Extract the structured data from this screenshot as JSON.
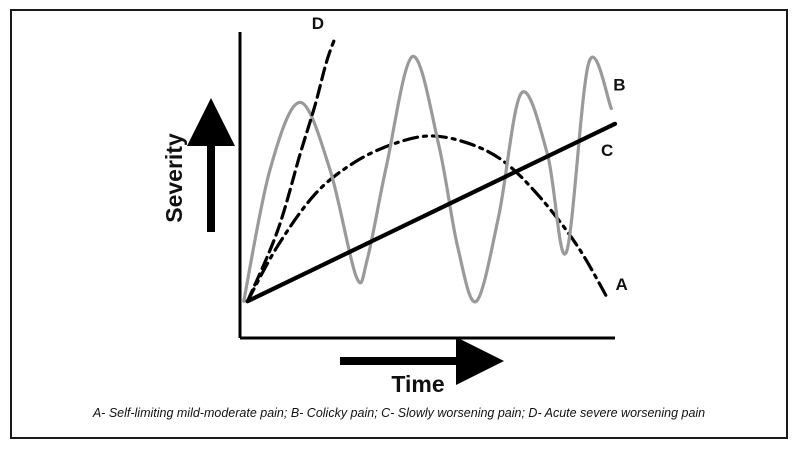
{
  "chart_data": {
    "type": "line",
    "xlabel": "Time",
    "ylabel": "Severity",
    "xlim": [
      0,
      10
    ],
    "ylim": [
      0,
      10
    ],
    "grid": false,
    "legend": "none",
    "series": [
      {
        "name": "A",
        "style": "dash-dot",
        "color": "#000000",
        "x": [
          0.2,
          1,
          2,
          3,
          4,
          5,
          6,
          7,
          8,
          9,
          9.8
        ],
        "y": [
          1.2,
          3.0,
          4.7,
          5.7,
          6.3,
          6.6,
          6.4,
          5.8,
          4.6,
          3.0,
          1.3
        ]
      },
      {
        "name": "B",
        "style": "solid",
        "color": "#9a9a9a",
        "x": [
          0.1,
          0.8,
          1.6,
          2.4,
          3.1,
          3.4,
          3.9,
          4.6,
          5.3,
          5.8,
          6.3,
          6.9,
          7.5,
          8.2,
          8.7,
          9.3,
          9.9
        ],
        "y": [
          1.2,
          5.5,
          7.7,
          5.5,
          2.0,
          2.6,
          5.6,
          9.2,
          6.3,
          3.0,
          1.2,
          4.0,
          8.0,
          6.0,
          2.8,
          9.0,
          7.5
        ]
      },
      {
        "name": "C",
        "style": "solid-thick",
        "color": "#000000",
        "x": [
          0.2,
          10
        ],
        "y": [
          1.2,
          7.0
        ]
      },
      {
        "name": "D",
        "style": "dashed",
        "color": "#000000",
        "x": [
          0.2,
          1.0,
          1.6,
          2.0,
          2.3,
          2.5
        ],
        "y": [
          1.2,
          3.5,
          6.0,
          7.6,
          9.0,
          9.7
        ]
      }
    ]
  },
  "caption": "A- Self-limiting mild-moderate pain; B- Colicky pain; C- Slowly worsening pain; D- Acute severe worsening pain"
}
